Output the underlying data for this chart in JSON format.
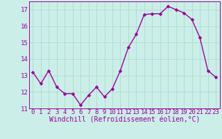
{
  "x": [
    0,
    1,
    2,
    3,
    4,
    5,
    6,
    7,
    8,
    9,
    10,
    11,
    12,
    13,
    14,
    15,
    16,
    17,
    18,
    19,
    20,
    21,
    22,
    23
  ],
  "y": [
    13.2,
    12.5,
    13.3,
    12.3,
    11.9,
    11.9,
    11.2,
    11.8,
    12.3,
    11.7,
    12.2,
    13.3,
    14.7,
    15.5,
    16.7,
    16.75,
    16.75,
    17.2,
    17.0,
    16.8,
    16.4,
    15.3,
    13.3,
    12.9
  ],
  "line_color": "#990099",
  "marker_color": "#990099",
  "bg_color": "#cceee8",
  "grid_color": "#aaddcc",
  "text_color": "#990099",
  "xlabel": "Windchill (Refroidissement éolien,°C)",
  "ylim": [
    11,
    17.5
  ],
  "xlim": [
    -0.5,
    23.5
  ],
  "yticks": [
    11,
    12,
    13,
    14,
    15,
    16,
    17
  ],
  "xticks": [
    0,
    1,
    2,
    3,
    4,
    5,
    6,
    7,
    8,
    9,
    10,
    11,
    12,
    13,
    14,
    15,
    16,
    17,
    18,
    19,
    20,
    21,
    22,
    23
  ],
  "font_size": 6.5,
  "xlabel_fontsize": 7,
  "marker_size": 2.5,
  "line_width": 1.0
}
